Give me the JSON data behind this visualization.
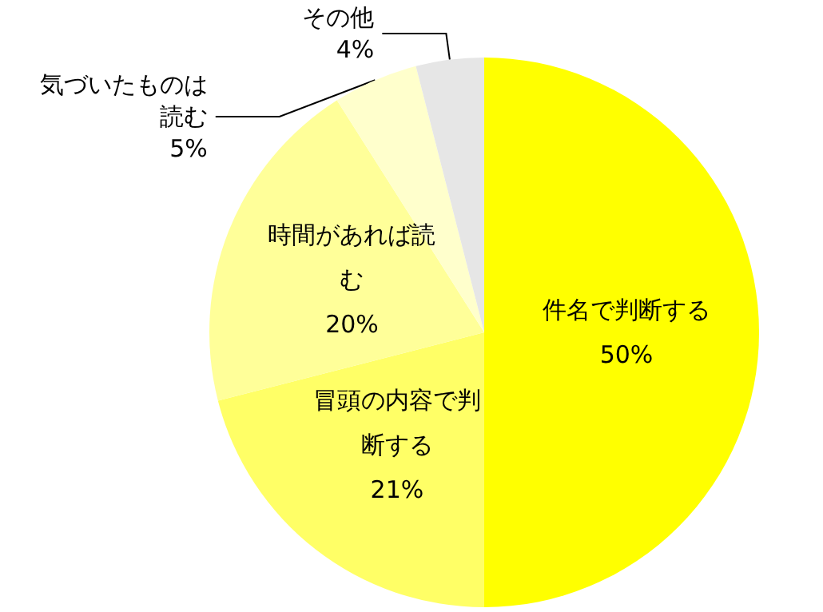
{
  "chart_data": {
    "type": "pie",
    "categories": [
      "件名で判断する",
      "冒頭の内容で判断する",
      "時間があれば読む",
      "気づいたものは読む",
      "その他"
    ],
    "values": [
      50,
      21,
      20,
      5,
      4
    ],
    "value_labels": [
      "50%",
      "21%",
      "20%",
      "5%",
      "4%"
    ],
    "colors": [
      "#ffff00",
      "#ffff66",
      "#ffff99",
      "#ffffcc",
      "#e6e6e6"
    ],
    "legend": false
  }
}
